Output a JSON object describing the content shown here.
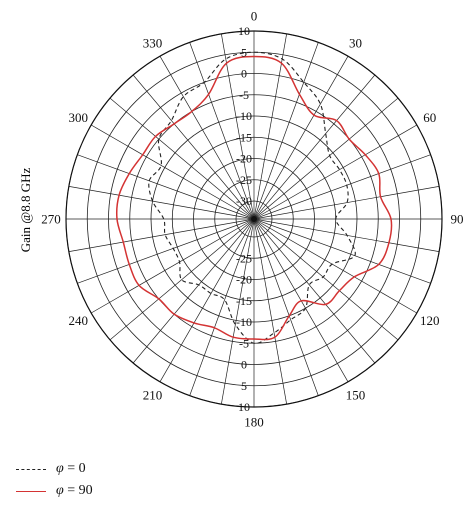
{
  "chart_data": {
    "type": "polar",
    "ylabel": "Gain @8.8 GHz",
    "angle_ticks": [
      "0",
      "30",
      "60",
      "90",
      "120",
      "150",
      "180",
      "210",
      "240",
      "270",
      "300",
      "330"
    ],
    "radial_ticks": [
      "10",
      "5",
      "0",
      "-5",
      "-10",
      "-15",
      "-20",
      "-25",
      "-30"
    ],
    "radial_range": [
      -30,
      10
    ],
    "grid": true,
    "legend_placement": "bottom-left",
    "series": [
      {
        "name": "φ = 0",
        "style": "dashed",
        "color": "#222222",
        "theta": [
          0,
          10,
          20,
          30,
          40,
          50,
          60,
          70,
          80,
          90,
          100,
          110,
          120,
          130,
          140,
          150,
          160,
          170,
          180,
          190,
          200,
          210,
          220,
          230,
          240,
          250,
          260,
          270,
          280,
          290,
          300,
          310,
          320,
          330,
          340,
          350
        ],
        "gain": [
          5,
          4,
          0,
          -3,
          -8,
          -11,
          -11,
          -11,
          -12,
          -15,
          -12,
          -9,
          -13,
          -13,
          -14,
          -10,
          -9,
          -7,
          -5,
          -9,
          -14,
          -14,
          -14,
          -12,
          -14,
          -14,
          -13,
          -13,
          -10,
          -8,
          -9,
          -5,
          -4,
          -1,
          0,
          4
        ]
      },
      {
        "name": "φ = 90",
        "style": "solid",
        "color": "#d43333",
        "theta": [
          0,
          10,
          20,
          30,
          40,
          50,
          60,
          70,
          80,
          90,
          100,
          110,
          120,
          130,
          140,
          150,
          160,
          170,
          180,
          190,
          200,
          210,
          220,
          230,
          240,
          250,
          260,
          270,
          280,
          290,
          300,
          310,
          320,
          330,
          340,
          350
        ],
        "gain": [
          4,
          3,
          -3,
          -6,
          -4,
          -5,
          -4,
          -3,
          -4,
          -2,
          -2,
          -3,
          -7,
          -8,
          -8,
          -12,
          -10,
          -6,
          -6,
          -6,
          -7,
          -6,
          -5,
          -5,
          -3,
          -3,
          -3,
          -2,
          -2,
          -3,
          -4,
          -4,
          -5,
          -5,
          -3,
          3
        ]
      }
    ]
  },
  "legend": {
    "items": [
      {
        "prefix": "φ",
        "suffix": " = 0"
      },
      {
        "prefix": "φ",
        "suffix": " = 90"
      }
    ]
  }
}
